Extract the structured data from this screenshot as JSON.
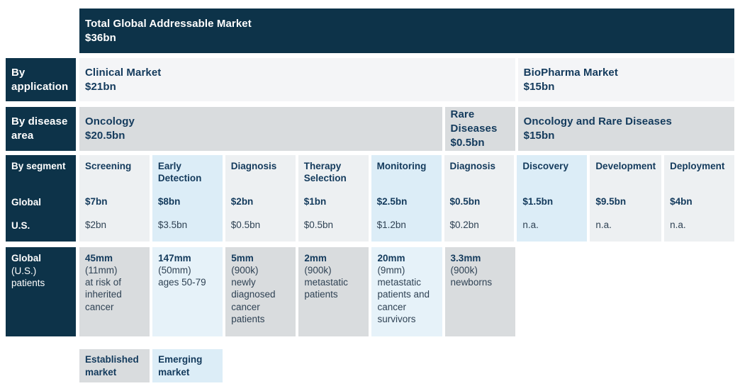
{
  "colors": {
    "navy": "#0d3349",
    "title_text": "#133a5c",
    "body_text": "#2f4254",
    "application_bg": "#f4f5f7",
    "disease_area_bg": "#d9dcde",
    "established_segment_bg": "#edf0f2",
    "emerging_segment_bg": "#dcedf7",
    "established_patients_bg": "#d9dcde",
    "emerging_patients_bg": "#e6f2f9"
  },
  "header": {
    "title": "Total Global Addressable Market",
    "value": "$36bn"
  },
  "application_row": {
    "label": "By application",
    "cells": [
      {
        "title": "Clinical Market",
        "value": "$21bn",
        "span": 6
      },
      {
        "title": "BioPharma Market",
        "value": "$15bn",
        "span": 3
      }
    ]
  },
  "disease_row": {
    "label": "By disease area",
    "cells": [
      {
        "title": "Oncology",
        "value": "$20.5bn",
        "span": 5
      },
      {
        "title": "Rare Diseases",
        "value": "$0.5bn",
        "span": 1
      },
      {
        "title": "Oncology and Rare Diseases",
        "value": "$15bn",
        "span": 3
      }
    ]
  },
  "segment_row": {
    "label": "By segment",
    "global_label": "Global",
    "us_label": "U.S.",
    "columns": [
      {
        "name": "Screening",
        "global": "$7bn",
        "us": "$2bn",
        "market": "established"
      },
      {
        "name": "Early Detection",
        "global": "$8bn",
        "us": "$3.5bn",
        "market": "emerging"
      },
      {
        "name": "Diagnosis",
        "global": "$2bn",
        "us": "$0.5bn",
        "market": "established"
      },
      {
        "name": "Therapy Selection",
        "global": "$1bn",
        "us": "$0.5bn",
        "market": "established"
      },
      {
        "name": "Monitoring",
        "global": "$2.5bn",
        "us": "$1.2bn",
        "market": "emerging"
      },
      {
        "name": "Diagnosis",
        "global": "$0.5bn",
        "us": "$0.2bn",
        "market": "established"
      },
      {
        "name": "Discovery",
        "global": "$1.5bn",
        "us": "n.a.",
        "market": "emerging"
      },
      {
        "name": "Development",
        "global": "$9.5bn",
        "us": "n.a.",
        "market": "established"
      },
      {
        "name": "Deployment",
        "global": "$4bn",
        "us": "n.a.",
        "market": "established"
      }
    ]
  },
  "patients_row": {
    "label_bold": "Global",
    "label_lines": [
      "(U.S.)",
      "patients"
    ],
    "cells": [
      {
        "value": "45mm",
        "us": "(11mm)",
        "desc": "at risk of inherited cancer",
        "market": "established"
      },
      {
        "value": "147mm",
        "us": "(50mm)",
        "desc": "ages 50-79",
        "market": "emerging"
      },
      {
        "value": "5mm",
        "us": "(900k)",
        "desc": "newly diagnosed cancer patients",
        "market": "established"
      },
      {
        "value": "2mm",
        "us": "(900k)",
        "desc": "metastatic patients",
        "market": "established"
      },
      {
        "value": "20mm",
        "us": "(9mm)",
        "desc": "metastatic patients and cancer survivors",
        "market": "emerging"
      },
      {
        "value": "3.3mm",
        "us": "(900k)",
        "desc": "newborns",
        "market": "established"
      }
    ]
  },
  "legend": {
    "items": [
      {
        "label": "Established market",
        "market": "established"
      },
      {
        "label": "Emerging market",
        "market": "emerging"
      }
    ]
  }
}
